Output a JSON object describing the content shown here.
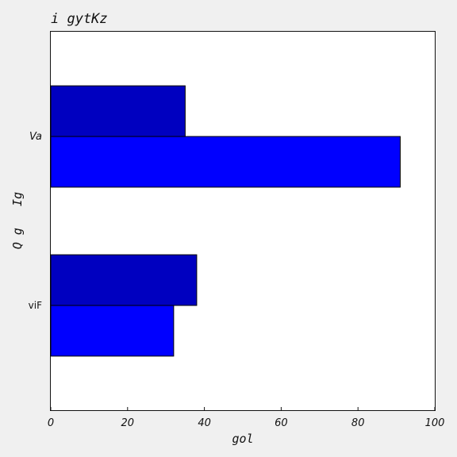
{
  "chart_data": {
    "type": "bar",
    "orientation": "horizontal",
    "title": "i gytKz",
    "xlabel": "gol",
    "ylabel": "Q g   Ig",
    "xlim": [
      0,
      100
    ],
    "xticks": [
      0,
      20,
      40,
      60,
      80,
      100
    ],
    "categories": [
      "viF",
      "Va"
    ],
    "series": [
      {
        "color": "#0000ff",
        "values": [
          32,
          91
        ]
      },
      {
        "color": "#0000c0",
        "values": [
          38,
          35
        ]
      }
    ],
    "grid": false,
    "legend": "none"
  }
}
